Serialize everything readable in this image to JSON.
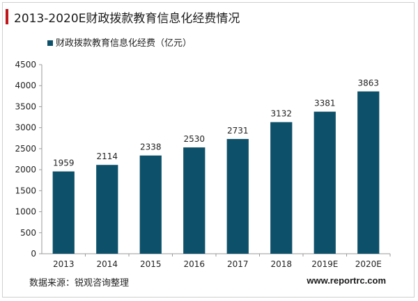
{
  "header": {
    "title": "2013-2020E财政拨款教育信息化经费情况",
    "accent_color": "#c0161c"
  },
  "footer": {
    "source": "数据来源：锐观咨询整理",
    "website": "www.reportrc.com"
  },
  "chart_data": {
    "type": "bar",
    "categories": [
      "2013",
      "2014",
      "2015",
      "2016",
      "2017",
      "2018",
      "2019E",
      "2020E"
    ],
    "series": [
      {
        "name": "财政拨款教育信息化经费（亿元）",
        "values": [
          1959,
          2114,
          2338,
          2530,
          2731,
          3132,
          3381,
          3863
        ],
        "color": "#0d5069"
      }
    ],
    "ylim": [
      0,
      4500
    ],
    "yticks": [
      0,
      500,
      1000,
      1500,
      2000,
      2500,
      3000,
      3500,
      4000,
      4500
    ],
    "data_labels": true,
    "legend_position": "top-left",
    "grid": false
  }
}
